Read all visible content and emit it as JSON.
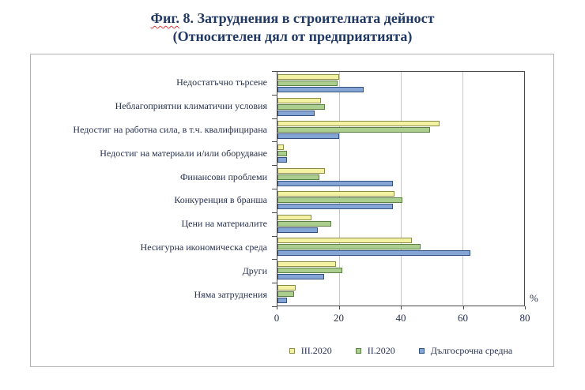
{
  "figure": {
    "title_prefix": "Фиг.",
    "title_rest": " 8. Затруднения в строителната дейност",
    "title_line2": "(Относителен дял от предприятията)"
  },
  "chart_data": {
    "type": "bar",
    "orientation": "horizontal",
    "title": "Фиг. 8. Затруднения в строителната дейност (Относителен дял от предприятията)",
    "categories": [
      "Недостатъчно търсене",
      "Неблагоприятни климатични условия",
      "Недостиг на работна сила, в т.ч. квалифицирана",
      "Недостиг на материали и/или оборудване",
      "Финансови проблеми",
      "Конкуренция в бранша",
      "Цени на материалите",
      "Несигурна икономическа среда",
      "Други",
      "Няма затруднения"
    ],
    "series": [
      {
        "name": "III.2020",
        "fill": "#F2F2A2",
        "border": "#8B8B4A",
        "values": [
          20,
          14,
          52.5,
          2,
          15.5,
          38,
          11,
          43.5,
          19,
          6
        ]
      },
      {
        "name": "II.2020",
        "fill": "#ABCE8E",
        "border": "#5C7F45",
        "values": [
          19.5,
          15.5,
          49.5,
          3,
          13.5,
          40.5,
          17.5,
          46.5,
          21,
          5.5
        ]
      },
      {
        "name": "Дългосрочна средна",
        "fill": "#85A5D7",
        "border": "#33527E",
        "values": [
          28,
          12,
          20,
          3,
          37.5,
          37.5,
          13,
          62.5,
          15,
          3
        ]
      }
    ],
    "xlim": [
      0,
      80
    ],
    "xticks": [
      0,
      20,
      40,
      60,
      80
    ],
    "axis_unit": "%",
    "grid": true,
    "legend_position": "bottom"
  }
}
